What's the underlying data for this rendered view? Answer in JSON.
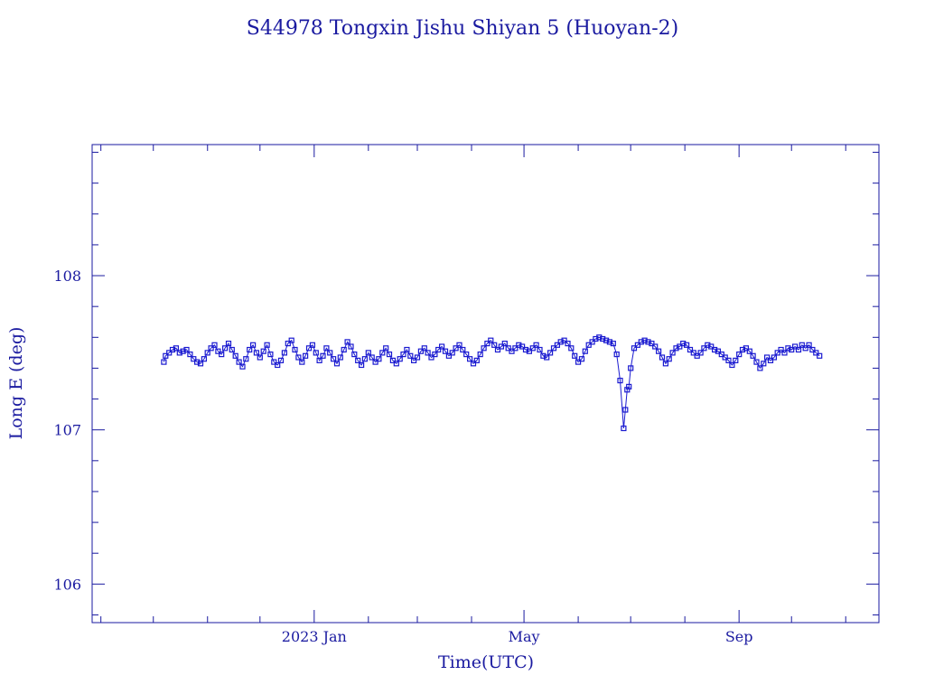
{
  "chart_data": {
    "type": "scatter",
    "title": "S44978 Tongxin Jishu Shiyan 5  (Huoyan-2)",
    "xlabel": "Time(UTC)",
    "ylabel": "Long E (deg)",
    "xlim": [
      "2022-08-27",
      "2023-11-20"
    ],
    "ylim": [
      105.75,
      108.85
    ],
    "x_ticks": [
      {
        "date": "2023-01-01",
        "label": "2023 Jan"
      },
      {
        "date": "2023-05-01",
        "label": "May"
      },
      {
        "date": "2023-09-01",
        "label": "Sep"
      }
    ],
    "y_ticks": [
      106,
      107,
      108
    ],
    "grid": false,
    "marker": "square",
    "connected": true,
    "color": "#1a1ad0",
    "series": [
      {
        "points": [
          [
            "2022-10-07",
            107.44
          ],
          [
            "2022-10-08",
            107.48
          ],
          [
            "2022-10-10",
            107.5
          ],
          [
            "2022-10-12",
            107.52
          ],
          [
            "2022-10-14",
            107.53
          ],
          [
            "2022-10-16",
            107.5
          ],
          [
            "2022-10-18",
            107.51
          ],
          [
            "2022-10-20",
            107.52
          ],
          [
            "2022-10-22",
            107.49
          ],
          [
            "2022-10-24",
            107.46
          ],
          [
            "2022-10-26",
            107.44
          ],
          [
            "2022-10-28",
            107.43
          ],
          [
            "2022-10-30",
            107.46
          ],
          [
            "2022-11-01",
            107.5
          ],
          [
            "2022-11-03",
            107.53
          ],
          [
            "2022-11-05",
            107.55
          ],
          [
            "2022-11-07",
            107.51
          ],
          [
            "2022-11-09",
            107.49
          ],
          [
            "2022-11-11",
            107.53
          ],
          [
            "2022-11-13",
            107.56
          ],
          [
            "2022-11-15",
            107.52
          ],
          [
            "2022-11-17",
            107.48
          ],
          [
            "2022-11-19",
            107.44
          ],
          [
            "2022-11-21",
            107.41
          ],
          [
            "2022-11-23",
            107.46
          ],
          [
            "2022-11-25",
            107.52
          ],
          [
            "2022-11-27",
            107.55
          ],
          [
            "2022-11-29",
            107.5
          ],
          [
            "2022-12-01",
            107.47
          ],
          [
            "2022-12-03",
            107.51
          ],
          [
            "2022-12-05",
            107.55
          ],
          [
            "2022-12-07",
            107.49
          ],
          [
            "2022-12-09",
            107.44
          ],
          [
            "2022-12-11",
            107.42
          ],
          [
            "2022-12-13",
            107.45
          ],
          [
            "2022-12-15",
            107.5
          ],
          [
            "2022-12-17",
            107.56
          ],
          [
            "2022-12-19",
            107.58
          ],
          [
            "2022-12-21",
            107.52
          ],
          [
            "2022-12-23",
            107.47
          ],
          [
            "2022-12-25",
            107.44
          ],
          [
            "2022-12-27",
            107.48
          ],
          [
            "2022-12-29",
            107.53
          ],
          [
            "2022-12-31",
            107.55
          ],
          [
            "2023-01-02",
            107.5
          ],
          [
            "2023-01-04",
            107.45
          ],
          [
            "2023-01-06",
            107.48
          ],
          [
            "2023-01-08",
            107.53
          ],
          [
            "2023-01-10",
            107.5
          ],
          [
            "2023-01-12",
            107.46
          ],
          [
            "2023-01-14",
            107.43
          ],
          [
            "2023-01-16",
            107.47
          ],
          [
            "2023-01-18",
            107.52
          ],
          [
            "2023-01-20",
            107.57
          ],
          [
            "2023-01-22",
            107.54
          ],
          [
            "2023-01-24",
            107.49
          ],
          [
            "2023-01-26",
            107.45
          ],
          [
            "2023-01-28",
            107.42
          ],
          [
            "2023-01-30",
            107.46
          ],
          [
            "2023-02-01",
            107.5
          ],
          [
            "2023-02-03",
            107.47
          ],
          [
            "2023-02-05",
            107.44
          ],
          [
            "2023-02-07",
            107.46
          ],
          [
            "2023-02-09",
            107.5
          ],
          [
            "2023-02-11",
            107.53
          ],
          [
            "2023-02-13",
            107.49
          ],
          [
            "2023-02-15",
            107.45
          ],
          [
            "2023-02-17",
            107.43
          ],
          [
            "2023-02-19",
            107.46
          ],
          [
            "2023-02-21",
            107.49
          ],
          [
            "2023-02-23",
            107.52
          ],
          [
            "2023-02-25",
            107.48
          ],
          [
            "2023-02-27",
            107.45
          ],
          [
            "2023-03-01",
            107.47
          ],
          [
            "2023-03-03",
            107.51
          ],
          [
            "2023-03-05",
            107.53
          ],
          [
            "2023-03-07",
            107.5
          ],
          [
            "2023-03-09",
            107.47
          ],
          [
            "2023-03-11",
            107.49
          ],
          [
            "2023-03-13",
            107.52
          ],
          [
            "2023-03-15",
            107.54
          ],
          [
            "2023-03-17",
            107.51
          ],
          [
            "2023-03-19",
            107.48
          ],
          [
            "2023-03-21",
            107.5
          ],
          [
            "2023-03-23",
            107.53
          ],
          [
            "2023-03-25",
            107.55
          ],
          [
            "2023-03-27",
            107.52
          ],
          [
            "2023-03-29",
            107.49
          ],
          [
            "2023-03-31",
            107.46
          ],
          [
            "2023-04-02",
            107.43
          ],
          [
            "2023-04-04",
            107.45
          ],
          [
            "2023-04-06",
            107.49
          ],
          [
            "2023-04-08",
            107.53
          ],
          [
            "2023-04-10",
            107.56
          ],
          [
            "2023-04-12",
            107.58
          ],
          [
            "2023-04-14",
            107.55
          ],
          [
            "2023-04-16",
            107.52
          ],
          [
            "2023-04-18",
            107.54
          ],
          [
            "2023-04-20",
            107.56
          ],
          [
            "2023-04-22",
            107.53
          ],
          [
            "2023-04-24",
            107.51
          ],
          [
            "2023-04-26",
            107.53
          ],
          [
            "2023-04-28",
            107.55
          ],
          [
            "2023-04-30",
            107.54
          ],
          [
            "2023-05-02",
            107.52
          ],
          [
            "2023-05-04",
            107.51
          ],
          [
            "2023-05-06",
            107.53
          ],
          [
            "2023-05-08",
            107.55
          ],
          [
            "2023-05-10",
            107.52
          ],
          [
            "2023-05-12",
            107.48
          ],
          [
            "2023-05-14",
            107.47
          ],
          [
            "2023-05-16",
            107.5
          ],
          [
            "2023-05-18",
            107.53
          ],
          [
            "2023-05-20",
            107.55
          ],
          [
            "2023-05-22",
            107.57
          ],
          [
            "2023-05-24",
            107.58
          ],
          [
            "2023-05-26",
            107.56
          ],
          [
            "2023-05-28",
            107.53
          ],
          [
            "2023-05-30",
            107.48
          ],
          [
            "2023-06-01",
            107.44
          ],
          [
            "2023-06-03",
            107.46
          ],
          [
            "2023-06-05",
            107.51
          ],
          [
            "2023-06-07",
            107.55
          ],
          [
            "2023-06-09",
            107.57
          ],
          [
            "2023-06-11",
            107.59
          ],
          [
            "2023-06-13",
            107.6
          ],
          [
            "2023-06-15",
            107.59
          ],
          [
            "2023-06-17",
            107.58
          ],
          [
            "2023-06-19",
            107.57
          ],
          [
            "2023-06-21",
            107.56
          ],
          [
            "2023-06-23",
            107.49
          ],
          [
            "2023-06-25",
            107.32
          ],
          [
            "2023-06-27",
            107.01
          ],
          [
            "2023-06-28",
            107.13
          ],
          [
            "2023-06-29",
            107.26
          ],
          [
            "2023-06-30",
            107.28
          ],
          [
            "2023-07-01",
            107.4
          ],
          [
            "2023-07-03",
            107.53
          ],
          [
            "2023-07-05",
            107.55
          ],
          [
            "2023-07-07",
            107.57
          ],
          [
            "2023-07-09",
            107.58
          ],
          [
            "2023-07-11",
            107.57
          ],
          [
            "2023-07-13",
            107.56
          ],
          [
            "2023-07-15",
            107.54
          ],
          [
            "2023-07-17",
            107.51
          ],
          [
            "2023-07-19",
            107.47
          ],
          [
            "2023-07-21",
            107.43
          ],
          [
            "2023-07-23",
            107.46
          ],
          [
            "2023-07-25",
            107.5
          ],
          [
            "2023-07-27",
            107.53
          ],
          [
            "2023-07-29",
            107.54
          ],
          [
            "2023-07-31",
            107.56
          ],
          [
            "2023-08-02",
            107.55
          ],
          [
            "2023-08-04",
            107.52
          ],
          [
            "2023-08-06",
            107.5
          ],
          [
            "2023-08-08",
            107.48
          ],
          [
            "2023-08-10",
            107.5
          ],
          [
            "2023-08-12",
            107.53
          ],
          [
            "2023-08-14",
            107.55
          ],
          [
            "2023-08-16",
            107.54
          ],
          [
            "2023-08-18",
            107.52
          ],
          [
            "2023-08-20",
            107.51
          ],
          [
            "2023-08-22",
            107.49
          ],
          [
            "2023-08-24",
            107.47
          ],
          [
            "2023-08-26",
            107.45
          ],
          [
            "2023-08-28",
            107.42
          ],
          [
            "2023-08-30",
            107.45
          ],
          [
            "2023-09-01",
            107.49
          ],
          [
            "2023-09-03",
            107.52
          ],
          [
            "2023-09-05",
            107.53
          ],
          [
            "2023-09-07",
            107.51
          ],
          [
            "2023-09-09",
            107.48
          ],
          [
            "2023-09-11",
            107.44
          ],
          [
            "2023-09-13",
            107.4
          ],
          [
            "2023-09-15",
            107.43
          ],
          [
            "2023-09-17",
            107.47
          ],
          [
            "2023-09-19",
            107.45
          ],
          [
            "2023-09-21",
            107.47
          ],
          [
            "2023-09-23",
            107.5
          ],
          [
            "2023-09-25",
            107.52
          ],
          [
            "2023-09-27",
            107.5
          ],
          [
            "2023-09-29",
            107.53
          ],
          [
            "2023-10-01",
            107.52
          ],
          [
            "2023-10-03",
            107.54
          ],
          [
            "2023-10-05",
            107.52
          ],
          [
            "2023-10-07",
            107.55
          ],
          [
            "2023-10-09",
            107.53
          ],
          [
            "2023-10-11",
            107.55
          ],
          [
            "2023-10-13",
            107.52
          ],
          [
            "2023-10-15",
            107.5
          ],
          [
            "2023-10-17",
            107.48
          ]
        ]
      }
    ]
  }
}
